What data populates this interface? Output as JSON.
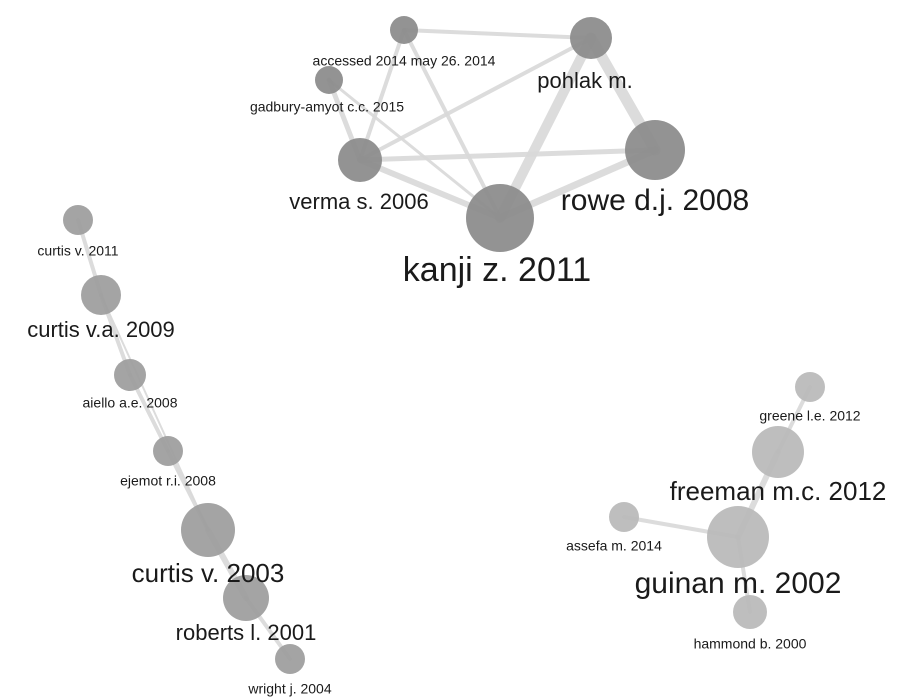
{
  "nodes": [
    {
      "label": "accessed 2014 may 26. 2014"
    },
    {
      "label": "gadbury-amyot c.c. 2015"
    },
    {
      "label": "pohlak m."
    },
    {
      "label": "verma s. 2006"
    },
    {
      "label": "rowe d.j. 2008"
    },
    {
      "label": "kanji z. 2011"
    },
    {
      "label": "curtis v. 2011"
    },
    {
      "label": "curtis v.a. 2009"
    },
    {
      "label": "aiello a.e. 2008"
    },
    {
      "label": "ejemot r.i. 2008"
    },
    {
      "label": "curtis v. 2003"
    },
    {
      "label": "roberts l. 2001"
    },
    {
      "label": "wright j. 2004"
    },
    {
      "label": "greene l.e. 2012"
    },
    {
      "label": "freeman m.c. 2012"
    },
    {
      "label": "assefa m. 2014"
    },
    {
      "label": "guinan m. 2002"
    },
    {
      "label": "hammond b. 2000"
    }
  ]
}
